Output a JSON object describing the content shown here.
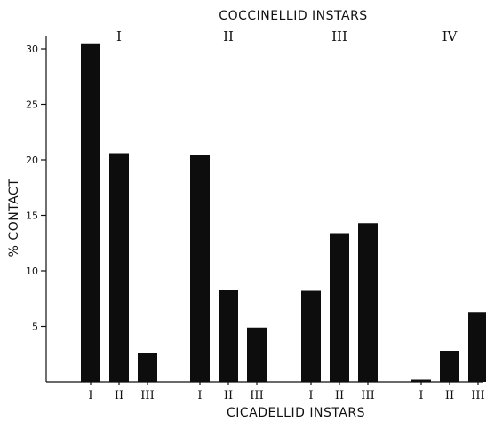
{
  "chart_data": {
    "type": "bar",
    "title": "COCCINELLID INSTARS",
    "xlabel": "CICADELLID INSTARS",
    "ylabel": "% CONTACT",
    "ylim": [
      0,
      32
    ],
    "yticks": [
      5,
      10,
      15,
      20,
      25,
      30
    ],
    "grid": false,
    "legend": "none",
    "bar_color": "#0d0d0d",
    "groups": [
      {
        "label": "I",
        "categories": [
          "I",
          "II",
          "III"
        ],
        "values": [
          30.5,
          20.6,
          2.6
        ]
      },
      {
        "label": "II",
        "categories": [
          "I",
          "II",
          "III"
        ],
        "values": [
          20.4,
          8.3,
          4.9
        ]
      },
      {
        "label": "III",
        "categories": [
          "I",
          "II",
          "III"
        ],
        "values": [
          8.2,
          13.4,
          14.3
        ]
      },
      {
        "label": "IV",
        "categories": [
          "I",
          "II",
          "III"
        ],
        "values": [
          0.2,
          2.8,
          6.3
        ]
      }
    ]
  }
}
